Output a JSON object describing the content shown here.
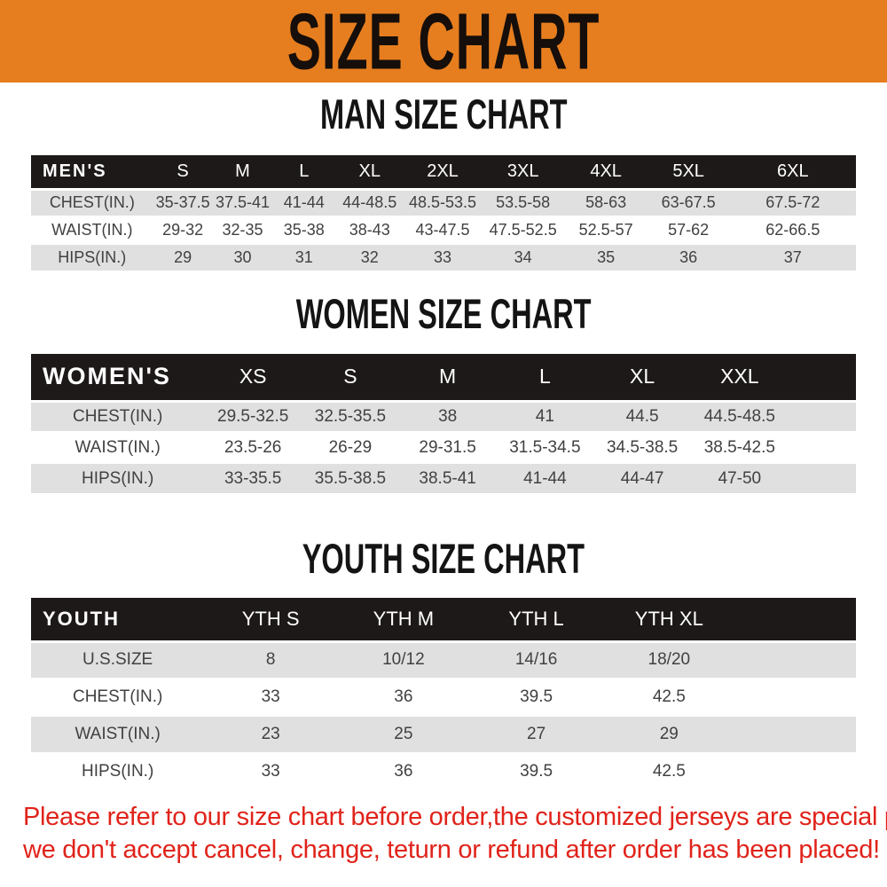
{
  "banner": {
    "title": "SIZE CHART"
  },
  "sections": [
    {
      "id": "men",
      "heading": "MAN SIZE CHART",
      "header_label": "MEN'S",
      "columns": [
        "S",
        "M",
        "L",
        "XL",
        "2XL",
        "3XL",
        "4XL",
        "5XL",
        "6XL"
      ],
      "rows": [
        {
          "label": "CHEST(IN.)",
          "values": [
            "35-37.5",
            "37.5-41",
            "41-44",
            "44-48.5",
            "48.5-53.5",
            "53.5-58",
            "58-63",
            "63-67.5",
            "67.5-72"
          ]
        },
        {
          "label": "WAIST(IN.)",
          "values": [
            "29-32",
            "32-35",
            "35-38",
            "38-43",
            "43-47.5",
            "47.5-52.5",
            "52.5-57",
            "57-62",
            "62-66.5"
          ]
        },
        {
          "label": "HIPS(IN.)",
          "values": [
            "29",
            "30",
            "31",
            "32",
            "33",
            "34",
            "35",
            "36",
            "37"
          ]
        }
      ]
    },
    {
      "id": "women",
      "heading": "WOMEN SIZE CHART",
      "header_label": "WOMEN'S",
      "columns": [
        "XS",
        "S",
        "M",
        "L",
        "XL",
        "XXL"
      ],
      "rows": [
        {
          "label": "CHEST(IN.)",
          "values": [
            "29.5-32.5",
            "32.5-35.5",
            "38",
            "41",
            "44.5",
            "44.5-48.5"
          ]
        },
        {
          "label": "WAIST(IN.)",
          "values": [
            "23.5-26",
            "26-29",
            "29-31.5",
            "31.5-34.5",
            "34.5-38.5",
            "38.5-42.5"
          ]
        },
        {
          "label": "HIPS(IN.)",
          "values": [
            "33-35.5",
            "35.5-38.5",
            "38.5-41",
            "41-44",
            "44-47",
            "47-50"
          ]
        }
      ]
    },
    {
      "id": "youth",
      "heading": "YOUTH SIZE CHART",
      "header_label": "YOUTH",
      "columns": [
        "YTH S",
        "YTH M",
        "YTH L",
        "YTH XL"
      ],
      "rows": [
        {
          "label": "U.S.SIZE",
          "values": [
            "8",
            "10/12",
            "14/16",
            "18/20"
          ]
        },
        {
          "label": "CHEST(IN.)",
          "values": [
            "33",
            "36",
            "39.5",
            "42.5"
          ]
        },
        {
          "label": "WAIST(IN.)",
          "values": [
            "23",
            "25",
            "27",
            "29"
          ]
        },
        {
          "label": "HIPS(IN.)",
          "values": [
            "33",
            "36",
            "39.5",
            "42.5"
          ]
        }
      ]
    }
  ],
  "footer": {
    "line1": "Please refer to our size chart before order,the customized jerseys are special products,",
    "line2": "we don't accept cancel, change, teturn or refund after order has been placed!"
  },
  "colors": {
    "banner_bg": "#E67E1F",
    "table_header_bg": "#1E1919",
    "stripe_bg": "#E0E0E0",
    "notice_text": "#E0231A",
    "heading_text": "#141414"
  }
}
